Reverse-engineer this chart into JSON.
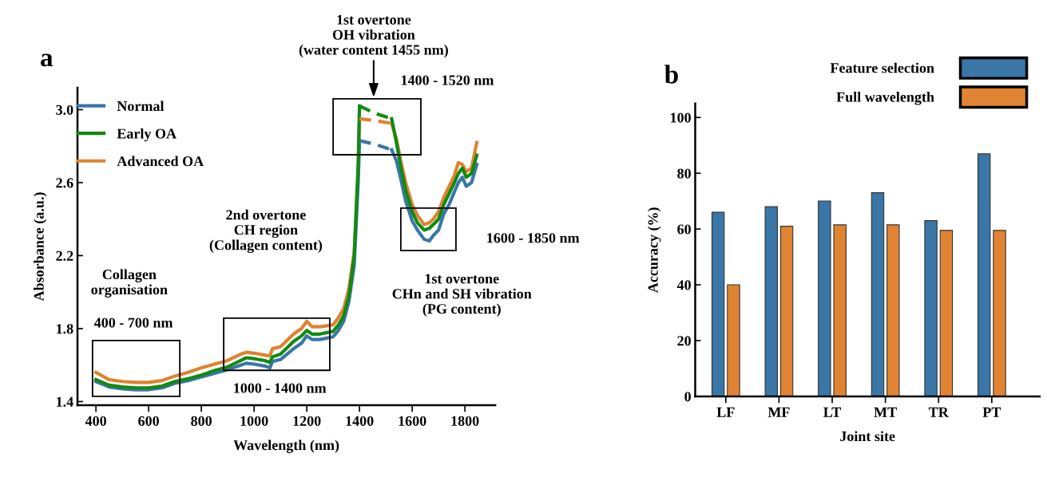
{
  "chart_data": [
    {
      "type": "line",
      "title": "a",
      "xlabel": "Wavelength (nm)",
      "ylabel": "Absorbance (a.u.)",
      "xlim": [
        330,
        1915
      ],
      "ylim": [
        1.38,
        3.12
      ],
      "xticks": [
        400,
        600,
        800,
        1000,
        1200,
        1400,
        1600,
        1800
      ],
      "yticks": [
        1.4,
        1.8,
        2.2,
        2.6,
        {
          "value": 3.0,
          "label": "3.0"
        }
      ],
      "legend": "top left",
      "grid": false,
      "marker": "none",
      "line_style": "solid",
      "x": [
        400,
        450,
        500,
        550,
        600,
        650,
        700,
        750,
        800,
        850,
        900,
        950,
        970,
        1000,
        1040,
        1060,
        1070,
        1100,
        1150,
        1180,
        1200,
        1220,
        1250,
        1300,
        1320,
        1340,
        1360,
        1380,
        1395,
        1400,
        1460,
        1522,
        1540,
        1555,
        1575,
        1600,
        1620,
        1645,
        1665,
        1680,
        1700,
        1720,
        1740,
        1760,
        1775,
        1790,
        1805,
        1825,
        1845
      ],
      "series": [
        {
          "name": "Advanced OA",
          "color": "#e0822f",
          "values": [
            1.56,
            1.52,
            1.51,
            1.505,
            1.505,
            1.515,
            1.54,
            1.56,
            1.585,
            1.605,
            1.625,
            1.66,
            1.67,
            1.665,
            1.655,
            1.65,
            1.69,
            1.7,
            1.77,
            1.8,
            1.84,
            1.81,
            1.81,
            1.82,
            1.86,
            1.91,
            2.02,
            2.22,
            2.65,
            2.95,
            null,
            2.925,
            2.84,
            2.73,
            2.6,
            2.48,
            2.42,
            2.37,
            2.38,
            2.4,
            2.44,
            2.52,
            2.58,
            2.64,
            2.71,
            2.7,
            2.66,
            2.68,
            2.82
          ]
        },
        {
          "name": "Normal",
          "color": "#3a76a8",
          "values": [
            1.51,
            1.48,
            1.47,
            1.465,
            1.465,
            1.475,
            1.5,
            1.515,
            1.535,
            1.555,
            1.575,
            1.6,
            1.61,
            1.605,
            1.595,
            1.585,
            1.62,
            1.63,
            1.69,
            1.72,
            1.76,
            1.74,
            1.74,
            1.755,
            1.79,
            1.84,
            1.95,
            2.15,
            2.6,
            2.83,
            null,
            2.78,
            2.72,
            2.63,
            2.5,
            2.39,
            2.34,
            2.29,
            2.28,
            2.31,
            2.34,
            2.43,
            2.48,
            2.55,
            2.6,
            2.63,
            2.58,
            2.6,
            2.7
          ]
        },
        {
          "name": "Early OA",
          "color": "#118a11",
          "values": [
            1.52,
            1.49,
            1.48,
            1.475,
            1.475,
            1.485,
            1.51,
            1.525,
            1.545,
            1.57,
            1.59,
            1.625,
            1.64,
            1.635,
            1.625,
            1.615,
            1.645,
            1.66,
            1.73,
            1.76,
            1.79,
            1.77,
            1.77,
            1.785,
            1.82,
            1.87,
            1.98,
            2.2,
            2.7,
            3.02,
            null,
            2.95,
            2.82,
            2.7,
            2.56,
            2.44,
            2.38,
            2.34,
            2.35,
            2.37,
            2.4,
            2.48,
            2.54,
            2.6,
            2.65,
            2.68,
            2.63,
            2.65,
            2.75
          ]
        },
        {
          "color": "#e0832f",
          "x": [
            1400,
            1460,
            1522
          ],
          "values": [
            2.95,
            2.94,
            2.925
          ],
          "line_style": "dashed"
        },
        {
          "color": "#3a77a8",
          "x": [
            1400,
            1460,
            1522
          ],
          "values": [
            2.83,
            2.81,
            2.78
          ],
          "line_style": "dashed"
        },
        {
          "color": "#118b11",
          "x": [
            1400,
            1460,
            1522
          ],
          "values": [
            3.02,
            2.98,
            2.95
          ],
          "line_style": "dashed"
        }
      ],
      "annotations": [
        "1st overtone\nOH vibration\n(water content 1455 nm)",
        "1400 - 1520 nm",
        "2nd overtone\nCH region\n(Collagen content)",
        "Collagen\norganisation",
        "400 - 700 nm",
        "1000 - 1400 nm",
        "1600 - 1850 nm",
        "1st overtone\nCHn and SH vibration\n(PG content)"
      ]
    },
    {
      "type": "bar",
      "title": "b",
      "xlabel": "Joint site",
      "ylabel": "Accuracy (%)",
      "ylim": [
        0,
        105
      ],
      "yticks": [
        0,
        20,
        40,
        60,
        80,
        100
      ],
      "legend": "top right",
      "grid": false,
      "categories": [
        "LF",
        "MF",
        "LT",
        "MT",
        "TR",
        "PT"
      ],
      "series": [
        {
          "name": "Feature selection",
          "color": "#3a76a6",
          "values": [
            66,
            68,
            70,
            73,
            63,
            87
          ]
        },
        {
          "name": "Full wavelength",
          "color": "#e08433",
          "values": [
            40,
            61,
            61.5,
            61.5,
            59.5,
            59.5
          ]
        }
      ]
    }
  ]
}
